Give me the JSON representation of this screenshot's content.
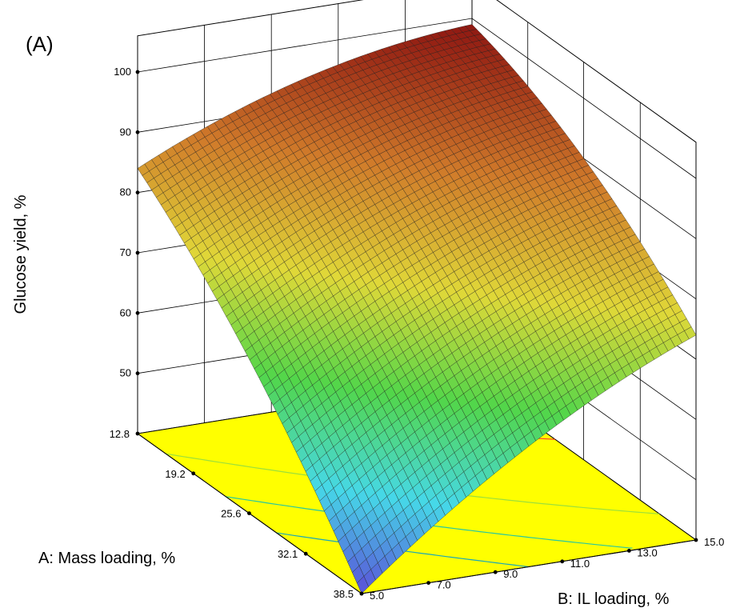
{
  "panel_label": "(A)",
  "chart_data": {
    "type": "surface3d",
    "title": "",
    "zlabel": "Glucose yield, %",
    "xlabel": "A: Mass loading, %",
    "ylabel": "B: IL loading, %",
    "z_ticks": [
      "50",
      "60",
      "70",
      "80",
      "90",
      "100"
    ],
    "x_ticks": [
      "12.8",
      "19.2",
      "25.6",
      "32.1",
      "38.5"
    ],
    "y_ticks": [
      "5.0",
      "7.0",
      "9.0",
      "11.0",
      "13.0",
      "15.0"
    ],
    "xlim": [
      12.8,
      38.5
    ],
    "ylim": [
      5.0,
      15.0
    ],
    "zlim": [
      40,
      100
    ],
    "corner_values": [
      {
        "mass_loading": 12.8,
        "il_loading": 5.0,
        "glucose_yield": 84
      },
      {
        "mass_loading": 12.8,
        "il_loading": 15.0,
        "glucose_yield": 99
      },
      {
        "mass_loading": 38.5,
        "il_loading": 15.0,
        "glucose_yield": 74
      },
      {
        "mass_loading": 38.5,
        "il_loading": 5.0,
        "glucose_yield": 40
      }
    ],
    "grid": true,
    "colormap": [
      "#5a4fd8",
      "#46d8e8",
      "#52d64a",
      "#e0d838",
      "#d07a2a",
      "#8a1010"
    ],
    "floor_color": "#ffff00",
    "contour_colors": [
      "#ff3a2a",
      "#9de03a",
      "#28c8a0",
      "#1aa8b8"
    ]
  }
}
